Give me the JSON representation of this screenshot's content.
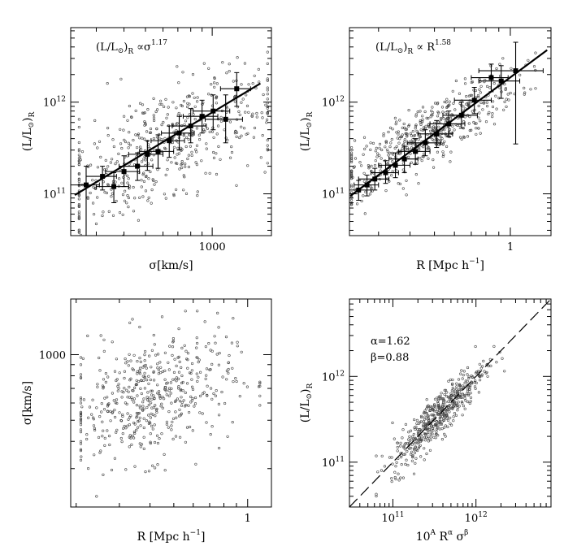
{
  "chart_data": [
    {
      "type": "scatter",
      "xscale": "log",
      "yscale": "log",
      "xlabel_main": "σ[km/s]",
      "ylabel_main": "(L/L",
      "ylabel_sub": "R",
      "annotation_main": "(L/L",
      "annotation_sub": "R",
      "annotation_mid": " ∝σ",
      "annotation_sup": "1.17",
      "x_ticks": [
        {
          "value": 1000,
          "label": "1000"
        }
      ],
      "y_ticks": [
        {
          "value": 100000000000.0,
          "label": "10",
          "sup": "11"
        },
        {
          "value": 1000000000000.0,
          "label": "10",
          "sup": "12"
        }
      ],
      "xlim": [
        230,
        1850
      ],
      "ylim": [
        35000000000.0,
        6500000000000.0
      ],
      "binned_points": [
        {
          "x": 270,
          "y": 125000000000.0,
          "xerr": 40,
          "ylo": 35000000000.0,
          "yhi": 200000000000.0
        },
        {
          "x": 320,
          "y": 155000000000.0,
          "xerr": 50,
          "ylo": 110000000000.0,
          "yhi": 200000000000.0
        },
        {
          "x": 360,
          "y": 120000000000.0,
          "xerr": 60,
          "ylo": 80000000000.0,
          "yhi": 170000000000.0
        },
        {
          "x": 400,
          "y": 175000000000.0,
          "xerr": 70,
          "ylo": 120000000000.0,
          "yhi": 260000000000.0
        },
        {
          "x": 460,
          "y": 200000000000.0,
          "xerr": 80,
          "ylo": 140000000000.0,
          "yhi": 280000000000.0
        },
        {
          "x": 510,
          "y": 270000000000.0,
          "xerr": 90,
          "ylo": 180000000000.0,
          "yhi": 380000000000.0
        },
        {
          "x": 570,
          "y": 290000000000.0,
          "xerr": 100,
          "ylo": 190000000000.0,
          "yhi": 440000000000.0
        },
        {
          "x": 640,
          "y": 380000000000.0,
          "xerr": 110,
          "ylo": 250000000000.0,
          "yhi": 550000000000.0
        },
        {
          "x": 710,
          "y": 460000000000.0,
          "xerr": 120,
          "ylo": 300000000000.0,
          "yhi": 700000000000.0
        },
        {
          "x": 800,
          "y": 550000000000.0,
          "xerr": 140,
          "ylo": 360000000000.0,
          "yhi": 850000000000.0
        },
        {
          "x": 900,
          "y": 700000000000.0,
          "xerr": 160,
          "ylo": 460000000000.0,
          "yhi": 1050000000000.0
        },
        {
          "x": 1010,
          "y": 800000000000.0,
          "xerr": 190,
          "ylo": 500000000000.0,
          "yhi": 1200000000000.0
        },
        {
          "x": 1150,
          "y": 650000000000.0,
          "xerr": 220,
          "ylo": 360000000000.0,
          "yhi": 1200000000000.0
        },
        {
          "x": 1290,
          "y": 1400000000000.0,
          "xerr": 200,
          "ylo": 900000000000.0,
          "yhi": 2100000000000.0
        }
      ],
      "fit_line": [
        [
          240,
          97000000000.0
        ],
        [
          1650,
          1600000000000.0
        ]
      ],
      "scatter_count": 500
    },
    {
      "type": "scatter",
      "xscale": "log",
      "yscale": "log",
      "xlabel_main": "R [Mpc  h",
      "xlabel_sup": "−1",
      "xlabel_end": "]",
      "ylabel_main": "(L/L",
      "ylabel_sub": "R",
      "annotation_main": "(L/L",
      "annotation_sub": "R",
      "annotation_mid": " ∝  R",
      "annotation_sup": "1.58",
      "x_ticks": [
        {
          "value": 1,
          "label": "1"
        }
      ],
      "y_ticks": [
        {
          "value": 100000000000.0,
          "label": "10",
          "sup": "11"
        },
        {
          "value": 1000000000000.0,
          "label": "10",
          "sup": "12"
        }
      ],
      "xlim": [
        0.23,
        1.45
      ],
      "ylim": [
        35000000000.0,
        6500000000000.0
      ],
      "binned_points": [
        {
          "x": 0.25,
          "y": 110000000000.0,
          "xerr": 0.03,
          "ylo": 85000000000.0,
          "yhi": 140000000000.0
        },
        {
          "x": 0.27,
          "y": 125000000000.0,
          "xerr": 0.03,
          "ylo": 95000000000.0,
          "yhi": 160000000000.0
        },
        {
          "x": 0.29,
          "y": 145000000000.0,
          "xerr": 0.04,
          "ylo": 110000000000.0,
          "yhi": 190000000000.0
        },
        {
          "x": 0.32,
          "y": 170000000000.0,
          "xerr": 0.04,
          "ylo": 130000000000.0,
          "yhi": 230000000000.0
        },
        {
          "x": 0.35,
          "y": 205000000000.0,
          "xerr": 0.05,
          "ylo": 150000000000.0,
          "yhi": 280000000000.0
        },
        {
          "x": 0.38,
          "y": 240000000000.0,
          "xerr": 0.05,
          "ylo": 170000000000.0,
          "yhi": 330000000000.0
        },
        {
          "x": 0.42,
          "y": 290000000000.0,
          "xerr": 0.06,
          "ylo": 210000000000.0,
          "yhi": 400000000000.0
        },
        {
          "x": 0.46,
          "y": 360000000000.0,
          "xerr": 0.07,
          "ylo": 260000000000.0,
          "yhi": 500000000000.0
        },
        {
          "x": 0.51,
          "y": 450000000000.0,
          "xerr": 0.08,
          "ylo": 320000000000.0,
          "yhi": 630000000000.0
        },
        {
          "x": 0.57,
          "y": 580000000000.0,
          "xerr": 0.09,
          "ylo": 420000000000.0,
          "yhi": 800000000000.0
        },
        {
          "x": 0.64,
          "y": 720000000000.0,
          "xerr": 0.1,
          "ylo": 520000000000.0,
          "yhi": 1000000000000.0
        },
        {
          "x": 0.72,
          "y": 1050000000000.0,
          "xerr": 0.12,
          "ylo": 750000000000.0,
          "yhi": 1450000000000.0
        },
        {
          "x": 0.84,
          "y": 1850000000000.0,
          "xerr": 0.14,
          "ylo": 1300000000000.0,
          "yhi": 2600000000000.0
        },
        {
          "x": 0.92,
          "y": 1700000000000.0,
          "xerr": 0.17,
          "ylo": 1100000000000.0,
          "yhi": 2500000000000.0
        },
        {
          "x": 1.05,
          "y": 2200000000000.0,
          "xerr": 0.3,
          "ylo": 350000000000.0,
          "yhi": 4500000000000.0
        }
      ],
      "fit_line": [
        [
          0.232,
          95000000000.0
        ],
        [
          1.4,
          3700000000000.0
        ]
      ],
      "scatter_count": 500
    },
    {
      "type": "scatter",
      "xscale": "log",
      "yscale": "log",
      "xlabel_main": "R [Mpc  h",
      "xlabel_sup": "−1",
      "xlabel_end": "]",
      "ylabel_main": "σ[km/s]",
      "x_ticks": [
        {
          "value": 1,
          "label": "1"
        }
      ],
      "y_ticks": [
        {
          "value": 1000,
          "label": "1000"
        }
      ],
      "xlim": [
        0.19,
        1.25
      ],
      "ylim": [
        200,
        1800
      ],
      "scatter_count": 500
    },
    {
      "type": "scatter",
      "xscale": "log",
      "yscale": "log",
      "xlabel_main": "10",
      "xlabel_sup_a": "A",
      "xlabel_mid": "  R",
      "xlabel_sup_b": "α",
      "xlabel_mid2": "   σ",
      "xlabel_sup_c": "β",
      "ylabel_main": "(L/L",
      "ylabel_sub": "R",
      "annotation_alpha": "α=1.62",
      "annotation_beta": "β=0.88",
      "x_ticks": [
        {
          "value": 100000000000.0,
          "label": "10",
          "sup": "11"
        },
        {
          "value": 1000000000000.0,
          "label": "10",
          "sup": "12"
        }
      ],
      "y_ticks": [
        {
          "value": 100000000000.0,
          "label": "10",
          "sup": "11"
        },
        {
          "value": 1000000000000.0,
          "label": "10",
          "sup": "12"
        }
      ],
      "xlim": [
        30000000000.0,
        8000000000000.0
      ],
      "ylim": [
        30000000000.0,
        8000000000000.0
      ],
      "dashed_line": "y = x",
      "scatter_count": 500
    }
  ]
}
